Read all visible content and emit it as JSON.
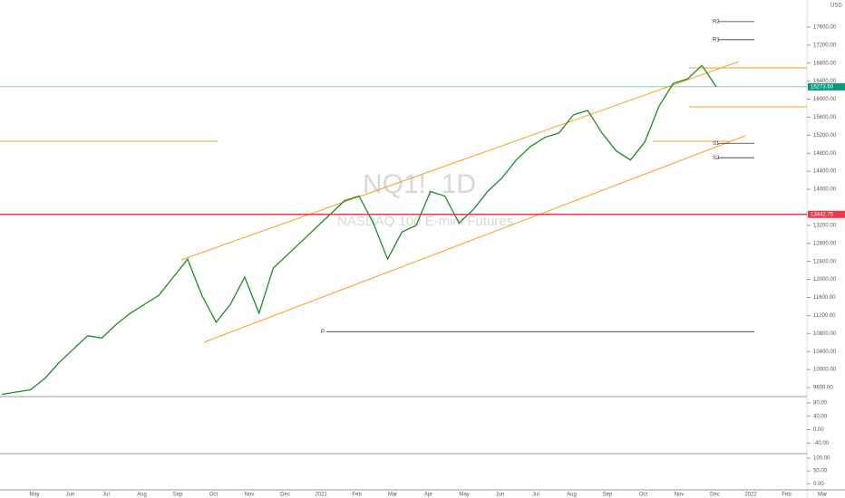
{
  "watermark": "NQ1!, 1D",
  "instrument": "NASDAQ 100 E-mini Futures",
  "currency": "USD",
  "chart_data": {
    "type": "line",
    "color": "#1f8b24",
    "values": [
      9450,
      9500,
      9550,
      9800,
      10150,
      10450,
      10750,
      10700,
      11000,
      11250,
      11450,
      11650,
      12050,
      12450,
      11650,
      11050,
      11450,
      12050,
      11250,
      12250,
      12550,
      12850,
      13150,
      13450,
      13750,
      13850,
      13250,
      12450,
      13050,
      13200,
      13950,
      13850,
      13250,
      13550,
      13950,
      14250,
      14650,
      14950,
      15150,
      15250,
      15650,
      15750,
      15250,
      14850,
      14650,
      15050,
      15850,
      16350,
      16450,
      16750,
      16273.5
    ],
    "ylim": [
      9420,
      18200
    ],
    "yticks": [
      {
        "value": 9600,
        "label": "9600.00"
      },
      {
        "value": 10000,
        "label": "10000.00"
      },
      {
        "value": 10400,
        "label": "10400.00"
      },
      {
        "value": 10800,
        "label": "10800.00"
      },
      {
        "value": 11200,
        "label": "11200.00"
      },
      {
        "value": 11600,
        "label": "11600.00"
      },
      {
        "value": 12000,
        "label": "12000.00"
      },
      {
        "value": 12400,
        "label": "12400.00"
      },
      {
        "value": 12800,
        "label": "12800.00"
      },
      {
        "value": 13200,
        "label": "13200.00"
      },
      {
        "value": 14000,
        "label": "14000.00"
      },
      {
        "value": 14400,
        "label": "14400.00"
      },
      {
        "value": 14800,
        "label": "14800.00"
      },
      {
        "value": 15200,
        "label": "15200.00"
      },
      {
        "value": 15600,
        "label": "15600.00"
      },
      {
        "value": 16000,
        "label": "16000.00"
      },
      {
        "value": 16400,
        "label": "16400.00"
      },
      {
        "value": 16800,
        "label": "16800.00"
      },
      {
        "value": 17200,
        "label": "17200.00"
      },
      {
        "value": 17600,
        "label": "17600.00"
      }
    ],
    "time_labels": [
      "May",
      "Jun",
      "Jul",
      "Aug",
      "Sep",
      "Oct",
      "Nov",
      "Dec",
      "2021",
      "Feb",
      "Mar",
      "Apr",
      "May",
      "Jun",
      "Jul",
      "Aug",
      "Sep",
      "Oct",
      "Nov",
      "Dec",
      "2022",
      "Feb",
      "Mar"
    ],
    "price_labels": [
      {
        "value": 16273.5,
        "label": "16273.50",
        "color": "#089981"
      },
      {
        "value": 13442.75,
        "label": "13442.75",
        "color": "#f23645"
      }
    ],
    "pivots": [
      {
        "label": "R2",
        "value": 17720
      },
      {
        "label": "R1",
        "value": 17320
      },
      {
        "label": "P",
        "value": 10840
      },
      {
        "label": "S1",
        "value": 15020
      },
      {
        "label": "S2",
        "value": 14700
      }
    ]
  },
  "oscillator": {
    "ylim": [
      -69,
      96
    ],
    "yticks": [
      {
        "value": 80,
        "label": "80.00"
      },
      {
        "value": 40,
        "label": "40.00"
      },
      {
        "value": 0,
        "label": "0.00"
      },
      {
        "value": -40,
        "label": "-40.00"
      }
    ]
  },
  "stochastic": {
    "ylim": [
      -20,
      114
    ],
    "yticks": [
      {
        "value": 100,
        "label": "100.00"
      },
      {
        "value": 50,
        "label": "50.00"
      },
      {
        "value": 0,
        "label": "0.00"
      }
    ]
  }
}
